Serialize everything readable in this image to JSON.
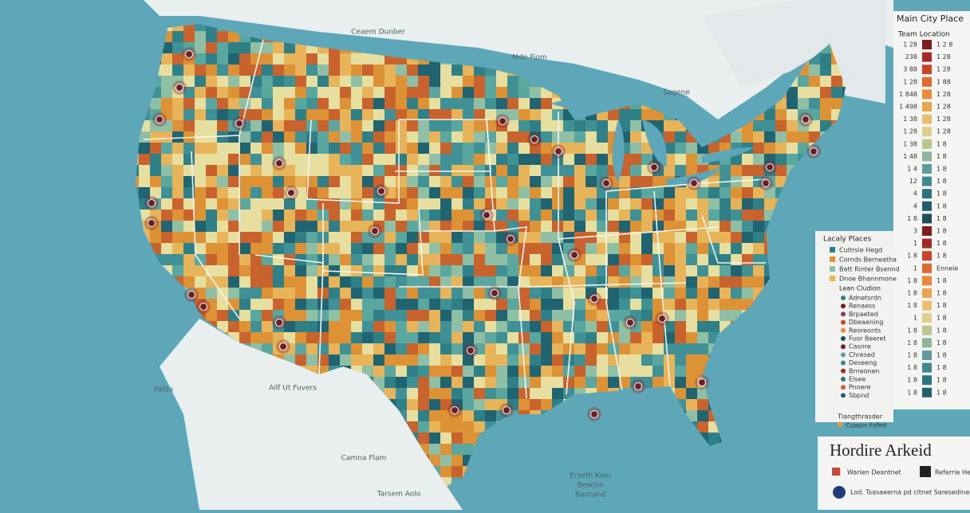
{
  "map_labels": [
    "Ceaem Dunber",
    "Mdn Fiom",
    "Sagene",
    "Palito",
    "Ailf Ut Fuvers",
    "Camna Flam",
    "Tarsem Aolo",
    "Erseth Kion",
    "Bewtos",
    "Bartiand"
  ],
  "legend": {
    "title": "Main City Place",
    "subtitle": "Team Location",
    "rows": [
      [
        "1 28",
        "1 2 8"
      ],
      [
        "238",
        "1 28"
      ],
      [
        "3 88",
        "1 28"
      ],
      [
        "1 28",
        "1 88"
      ],
      [
        "1 848",
        "1 28"
      ],
      [
        "1 498",
        "1 28"
      ],
      [
        "1 38",
        "1 28"
      ],
      [
        "1 28",
        "1 28"
      ],
      [
        "1 38",
        "1 8"
      ],
      [
        "1 48",
        "1 8"
      ],
      [
        "1 4",
        "1 8"
      ],
      [
        "12",
        "1 8"
      ],
      [
        "4",
        "1 8"
      ],
      [
        "4",
        "1 8"
      ],
      [
        "1 8",
        "1 8"
      ],
      [
        "3",
        "1 8"
      ],
      [
        "1",
        "1 8"
      ],
      [
        "1 8",
        "1 8"
      ],
      [
        "1",
        "Ennele"
      ],
      [
        "1 8",
        "1 8"
      ],
      [
        "1 8",
        "1 8"
      ],
      [
        "1 8",
        "1 8"
      ],
      [
        "1",
        "1 8"
      ],
      [
        "1 8",
        "1 8"
      ],
      [
        "1 8",
        "1 8"
      ],
      [
        "1 8",
        "1 8"
      ],
      [
        "1 8",
        "1 8"
      ],
      [
        "1 8",
        "1 8"
      ],
      [
        "1 8",
        "1 8"
      ]
    ]
  },
  "places": {
    "title": "Lacaly Places",
    "items": [
      "Cultrsle Hegd",
      "Cornds Berneatha",
      "Batt Rinter Bsennd",
      "Dnoe Bhannmone"
    ],
    "subtitle": "Lean Cludion",
    "symbols": [
      "Adnetsrdn",
      "Renaess",
      "Brpaeted",
      "Dbeaening",
      "Reoreonts",
      "Fuor Beeret",
      "Casnre",
      "Chresed",
      "Deseeng",
      "Brneonen",
      "Elsee",
      "Pnoere",
      "Sbpnd"
    ],
    "footer": "Tlangthrasder",
    "footer_item": "Cuasin Fsfint"
  },
  "panel": {
    "title": "Hordire Arkeid",
    "items": [
      "Warlen Deantnet",
      "Referrie Hegiest"
    ],
    "note": "Lod. Tsasaeerna pd citnet Saresedinel"
  }
}
